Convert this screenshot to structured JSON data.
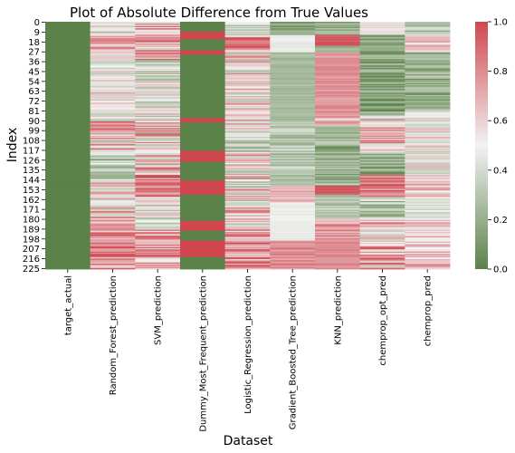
{
  "chart_data": {
    "type": "heatmap",
    "title": "Plot of Absolute Difference from True Values",
    "xlabel": "Dataset",
    "ylabel": "Index",
    "columns": [
      "target_actual",
      "Random_Forest_prediction",
      "SVM_prediction",
      "Dummy_Most_Frequent_prediction",
      "Logistic_Regression_prediction",
      "Gradient_Boosted_Tree_prediction",
      "KNN_prediction",
      "chemprop_opt_pred",
      "chemprop_pred"
    ],
    "y_tick_labels": [
      "0",
      "9",
      "18",
      "27",
      "36",
      "45",
      "54",
      "63",
      "72",
      "81",
      "90",
      "99",
      "108",
      "117",
      "126",
      "135",
      "144",
      "153",
      "162",
      "171",
      "180",
      "189",
      "198",
      "207",
      "216",
      "225"
    ],
    "rows": 226,
    "value_range": [
      0.0,
      1.0
    ],
    "colorbar": {
      "ticks": [
        "0.0",
        "0.2",
        "0.4",
        "0.6",
        "0.8",
        "1.0"
      ],
      "low_color": "#5b8249",
      "mid_color": "#f2f2f2",
      "high_color": "#d0474f"
    },
    "column_profiles": [
      [
        [
          0,
          226,
          0.0,
          0.0
        ]
      ],
      [
        [
          0,
          12,
          0.2,
          0.65
        ],
        [
          12,
          26,
          0.55,
          0.9
        ],
        [
          26,
          90,
          0.3,
          0.7
        ],
        [
          90,
          118,
          0.25,
          0.95
        ],
        [
          118,
          145,
          0.15,
          0.55
        ],
        [
          145,
          182,
          0.3,
          0.9
        ],
        [
          182,
          226,
          0.55,
          1.0
        ]
      ],
      [
        [
          0,
          35,
          0.35,
          1.0
        ],
        [
          35,
          90,
          0.2,
          0.7
        ],
        [
          90,
          140,
          0.2,
          0.95
        ],
        [
          140,
          160,
          0.6,
          1.0
        ],
        [
          160,
          190,
          0.2,
          0.7
        ],
        [
          190,
          226,
          0.45,
          1.0
        ]
      ],
      [
        [
          0,
          9,
          0.0,
          0.0
        ],
        [
          9,
          16,
          1.0,
          1.0
        ],
        [
          16,
          26,
          0.0,
          0.0
        ],
        [
          26,
          30,
          1.0,
          1.0
        ],
        [
          30,
          88,
          0.0,
          0.0
        ],
        [
          88,
          92,
          1.0,
          1.0
        ],
        [
          92,
          118,
          0.0,
          0.0
        ],
        [
          118,
          128,
          1.0,
          1.0
        ],
        [
          128,
          145,
          0.0,
          0.0
        ],
        [
          145,
          158,
          1.0,
          1.0
        ],
        [
          158,
          182,
          0.0,
          0.0
        ],
        [
          182,
          191,
          1.0,
          1.0
        ],
        [
          191,
          200,
          0.0,
          0.0
        ],
        [
          200,
          215,
          1.0,
          1.0
        ],
        [
          215,
          226,
          0.0,
          0.0
        ]
      ],
      [
        [
          0,
          14,
          0.2,
          0.6
        ],
        [
          14,
          26,
          0.7,
          1.0
        ],
        [
          26,
          100,
          0.25,
          0.85
        ],
        [
          100,
          120,
          0.15,
          0.6
        ],
        [
          120,
          190,
          0.2,
          0.9
        ],
        [
          190,
          226,
          0.5,
          1.0
        ]
      ],
      [
        [
          0,
          12,
          0.05,
          0.3
        ],
        [
          12,
          28,
          0.45,
          0.5
        ],
        [
          28,
          92,
          0.2,
          0.3
        ],
        [
          92,
          150,
          0.2,
          0.45
        ],
        [
          150,
          165,
          0.6,
          0.75
        ],
        [
          165,
          200,
          0.45,
          0.5
        ],
        [
          200,
          226,
          0.7,
          0.9
        ]
      ],
      [
        [
          0,
          12,
          0.05,
          0.35
        ],
        [
          12,
          22,
          0.9,
          1.0
        ],
        [
          22,
          28,
          0.05,
          0.3
        ],
        [
          28,
          88,
          0.7,
          0.85
        ],
        [
          88,
          95,
          0.3,
          0.8
        ],
        [
          95,
          150,
          0.05,
          0.4
        ],
        [
          150,
          158,
          0.9,
          1.0
        ],
        [
          158,
          180,
          0.2,
          0.4
        ],
        [
          180,
          200,
          0.6,
          0.95
        ],
        [
          200,
          226,
          0.75,
          0.85
        ]
      ],
      [
        [
          0,
          12,
          0.4,
          0.6
        ],
        [
          12,
          85,
          0.0,
          0.3
        ],
        [
          85,
          120,
          0.3,
          0.9
        ],
        [
          120,
          140,
          0.0,
          0.35
        ],
        [
          140,
          160,
          0.7,
          1.0
        ],
        [
          160,
          180,
          0.1,
          0.5
        ],
        [
          180,
          226,
          0.3,
          1.0
        ]
      ],
      [
        [
          0,
          12,
          0.1,
          0.45
        ],
        [
          12,
          28,
          0.5,
          0.8
        ],
        [
          28,
          80,
          0.05,
          0.35
        ],
        [
          80,
          140,
          0.3,
          0.7
        ],
        [
          140,
          160,
          0.45,
          0.8
        ],
        [
          160,
          180,
          0.25,
          0.55
        ],
        [
          180,
          226,
          0.45,
          0.85
        ]
      ]
    ]
  }
}
